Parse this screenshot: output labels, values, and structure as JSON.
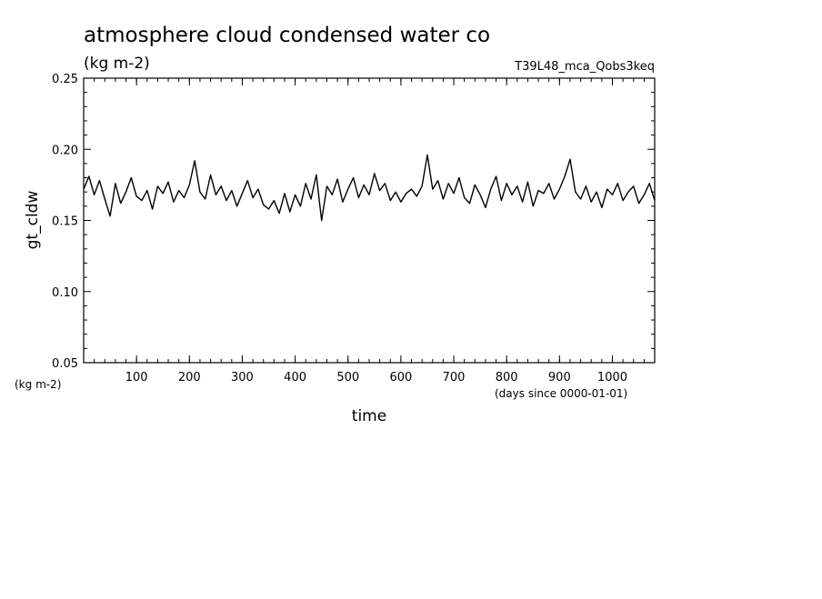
{
  "chart_data": {
    "type": "line",
    "title": "atmosphere cloud condensed water co",
    "units_label": "(kg m-2)",
    "run_label": "T39L48_mca_Qobs3keq",
    "xlabel": "time",
    "x_units": "(days since 0000-01-01)",
    "ylabel": "gt_cldw",
    "y_units": "(kg m-2)",
    "xlim": [
      0,
      1080
    ],
    "ylim": [
      0.05,
      0.25
    ],
    "x_ticks": [
      100,
      200,
      300,
      400,
      500,
      600,
      700,
      800,
      900,
      1000
    ],
    "x_tick_labels": [
      "100",
      "200",
      "300",
      "400",
      "500",
      "600",
      "700",
      "800",
      "900",
      "1000"
    ],
    "y_ticks": [
      0.05,
      0.1,
      0.15,
      0.2,
      0.25
    ],
    "y_tick_labels": [
      "0.05",
      "0.10",
      "0.15",
      "0.20",
      "0.25"
    ],
    "grid": false,
    "line_color": "#000000",
    "series": [
      {
        "x": [
          0,
          10,
          20,
          30,
          40,
          50,
          60,
          70,
          80,
          90,
          100,
          110,
          120,
          130,
          140,
          150,
          160,
          170,
          180,
          190,
          200,
          210,
          220,
          230,
          240,
          250,
          260,
          270,
          280,
          290,
          300,
          310,
          320,
          330,
          340,
          350,
          360,
          370,
          380,
          390,
          400,
          410,
          420,
          430,
          440,
          450,
          460,
          470,
          480,
          490,
          500,
          510,
          520,
          530,
          540,
          550,
          560,
          570,
          580,
          590,
          600,
          610,
          620,
          630,
          640,
          650,
          660,
          670,
          680,
          690,
          700,
          710,
          720,
          730,
          740,
          750,
          760,
          770,
          780,
          790,
          800,
          810,
          820,
          830,
          840,
          850,
          860,
          870,
          880,
          890,
          900,
          910,
          920,
          930,
          940,
          950,
          960,
          970,
          980,
          990,
          1000,
          1010,
          1020,
          1030,
          1040,
          1050,
          1060,
          1070,
          1080
        ],
        "y": [
          0.172,
          0.181,
          0.168,
          0.178,
          0.165,
          0.153,
          0.176,
          0.162,
          0.17,
          0.18,
          0.167,
          0.164,
          0.171,
          0.158,
          0.174,
          0.169,
          0.177,
          0.163,
          0.171,
          0.166,
          0.175,
          0.192,
          0.17,
          0.165,
          0.182,
          0.168,
          0.174,
          0.164,
          0.171,
          0.16,
          0.169,
          0.178,
          0.166,
          0.172,
          0.161,
          0.158,
          0.164,
          0.155,
          0.169,
          0.156,
          0.168,
          0.16,
          0.176,
          0.165,
          0.182,
          0.15,
          0.174,
          0.168,
          0.179,
          0.163,
          0.172,
          0.18,
          0.166,
          0.175,
          0.168,
          0.183,
          0.171,
          0.176,
          0.164,
          0.17,
          0.163,
          0.169,
          0.172,
          0.167,
          0.174,
          0.196,
          0.172,
          0.178,
          0.165,
          0.176,
          0.169,
          0.18,
          0.166,
          0.162,
          0.175,
          0.168,
          0.159,
          0.172,
          0.181,
          0.164,
          0.176,
          0.168,
          0.174,
          0.163,
          0.177,
          0.16,
          0.171,
          0.169,
          0.176,
          0.165,
          0.172,
          0.181,
          0.193,
          0.17,
          0.165,
          0.174,
          0.163,
          0.17,
          0.159,
          0.172,
          0.168,
          0.176,
          0.164,
          0.17,
          0.174,
          0.162,
          0.168,
          0.176,
          0.164
        ]
      }
    ]
  }
}
